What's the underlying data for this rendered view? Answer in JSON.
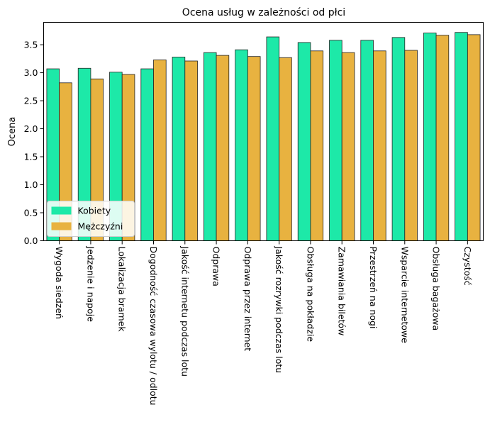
{
  "chart_data": {
    "type": "bar",
    "title": "Ocena usług w zależności od płci",
    "xlabel": "",
    "ylabel": "Ocena",
    "ylim": [
      0,
      3.9
    ],
    "yticks": [
      0.0,
      0.5,
      1.0,
      1.5,
      2.0,
      2.5,
      3.0,
      3.5
    ],
    "ytick_labels": [
      "0.0",
      "0.5",
      "1.0",
      "1.5",
      "2.0",
      "2.5",
      "3.0",
      "3.5"
    ],
    "grid": false,
    "legend_position": "lower-left",
    "categories": [
      "Wygoda siedzeń",
      "Jedzenie i napoje",
      "Lokalizacja bramek",
      "Dogodność czasowa wylotu / odlotu",
      "Jakość internetu podczas lotu",
      "Odprawa",
      "Odprawa przez internet",
      "Jakość rozrywki podczas lotu",
      "Obsługa na pokładzie",
      "Zamawiania biletów",
      "Przestrzeń na nogi",
      "Wsparcie internetowe",
      "Obsługa bagażowa",
      "Czystość"
    ],
    "series": [
      {
        "name": "Kobiety",
        "color": "#1de9a8",
        "values": [
          3.07,
          3.08,
          3.01,
          3.07,
          3.28,
          3.36,
          3.41,
          3.64,
          3.54,
          3.58,
          3.58,
          3.63,
          3.71,
          3.72
        ]
      },
      {
        "name": "Mężczyźni",
        "color": "#e8b240",
        "values": [
          2.82,
          2.89,
          2.97,
          3.23,
          3.21,
          3.31,
          3.29,
          3.27,
          3.39,
          3.36,
          3.39,
          3.4,
          3.67,
          3.68
        ]
      }
    ]
  }
}
